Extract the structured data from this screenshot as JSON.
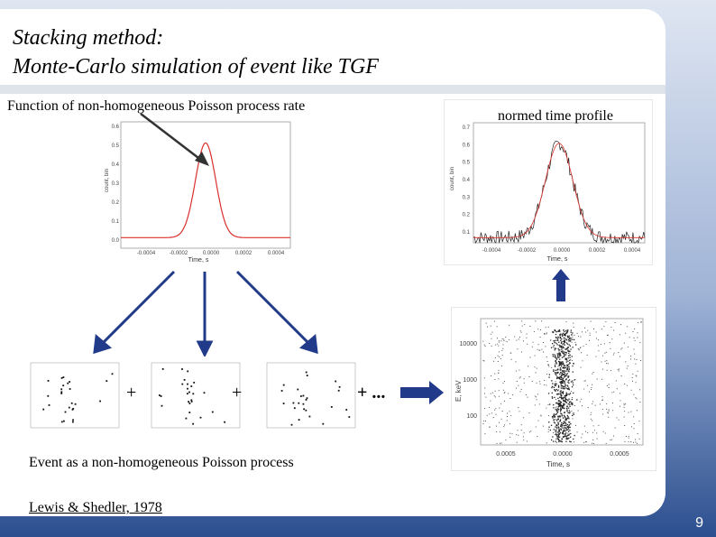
{
  "slide": {
    "title_line1": "Stacking method:",
    "title_line2": "Monte-Carlo simulation of event like TGF",
    "label_rate": "Function of non-homogeneous Poisson process rate",
    "label_profile": "normed time profile",
    "label_event": "Event as a non-homogeneous Poisson process",
    "label_ref": "Lewis & Shedler, 1978",
    "plus": "+",
    "plus_more": "+ ...",
    "page_number": "9"
  },
  "colors": {
    "arrow": "#223a8a",
    "curve_red": "#d9302c",
    "accent_blue": "#1f3f7a"
  },
  "chart_data": [
    {
      "type": "line",
      "title": "",
      "xlabel": "Time, s",
      "ylabel": "count, bin",
      "xticks": [
        "-0.0004",
        "-0.0002",
        "0.0000",
        "0.0002",
        "0.0004"
      ],
      "yticks": [
        "0.0",
        "0.1",
        "0.2",
        "0.3",
        "0.4",
        "0.5",
        "0.6"
      ],
      "xlim": [
        -0.0005,
        0.0005
      ],
      "ylim": [
        0,
        0.6
      ],
      "series": [
        {
          "x": [
            -0.0005,
            -0.0002,
            -0.0001,
            -5e-05,
            0,
            5e-05,
            0.0001,
            0.0002,
            0.0005
          ],
          "y": [
            0.05,
            0.05,
            0.12,
            0.3,
            0.5,
            0.3,
            0.12,
            0.05,
            0.05
          ]
        }
      ]
    },
    {
      "type": "line",
      "title": "",
      "xlabel": "Time, s",
      "ylabel": "count, bin",
      "xticks": [
        "-0.0004",
        "-0.0002",
        "0.0000",
        "0.0002",
        "0.0004"
      ],
      "yticks": [
        "0.1",
        "0.2",
        "0.3",
        "0.4",
        "0.5",
        "0.6",
        "0.7"
      ],
      "xlim": [
        -0.0005,
        0.0005
      ],
      "ylim": [
        0,
        0.7
      ]
    },
    {
      "type": "scatter",
      "title": "",
      "xlabel": "Time, s",
      "ylabel": "E, keV",
      "xticks": [
        "0.0005",
        "0.0000",
        "0.0005"
      ],
      "yticks": [
        "100",
        "1000",
        "10000"
      ]
    }
  ]
}
